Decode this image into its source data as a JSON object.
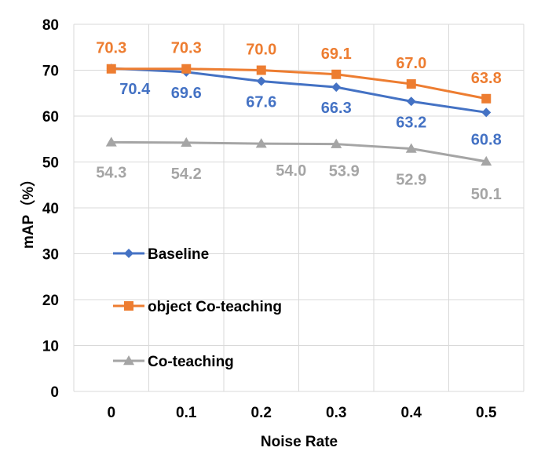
{
  "chart_data": {
    "type": "line",
    "title": "",
    "xlabel": "Noise Rate",
    "ylabel": "mAP（%）",
    "x": [
      "0",
      "0.1",
      "0.2",
      "0.3",
      "0.4",
      "0.5"
    ],
    "ylim": [
      0,
      80
    ],
    "yticks": [
      "0",
      "10",
      "20",
      "30",
      "40",
      "50",
      "60",
      "70",
      "80"
    ],
    "grid": true,
    "legend_position": "left-middle inside plot",
    "series": [
      {
        "name": "Baseline",
        "values": [
          70.4,
          69.6,
          67.6,
          66.3,
          63.2,
          60.8
        ],
        "labels": [
          "70.4",
          "69.6",
          "67.6",
          "66.3",
          "63.2",
          "60.8"
        ],
        "color": "#4472C4",
        "marker": "diamond"
      },
      {
        "name": "object Co-teaching",
        "values": [
          70.3,
          70.3,
          70.0,
          69.1,
          67.0,
          63.8
        ],
        "labels": [
          "70.3",
          "70.3",
          "70.0",
          "69.1",
          "67.0",
          "63.8"
        ],
        "color": "#ED7D31",
        "marker": "square"
      },
      {
        "name": "Co-teaching",
        "values": [
          54.3,
          54.2,
          54.0,
          53.9,
          52.9,
          50.1
        ],
        "labels": [
          "54.3",
          "54.2",
          "54.0",
          "53.9",
          "52.9",
          "50.1"
        ],
        "color": "#A5A5A5",
        "marker": "triangle"
      }
    ]
  }
}
